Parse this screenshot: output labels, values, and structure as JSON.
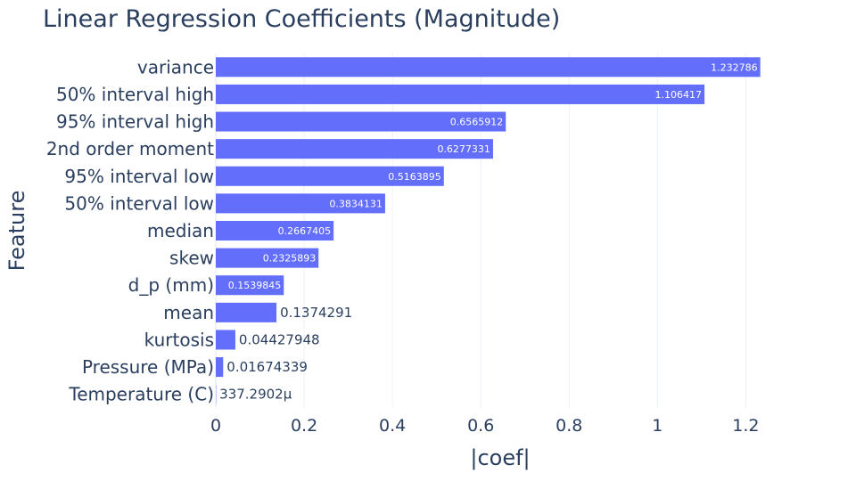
{
  "chart_data": {
    "type": "bar",
    "orientation": "horizontal",
    "title": "Linear Regression Coefficients (Magnitude)",
    "xlabel": "|coef|",
    "ylabel": "Feature",
    "xlim": [
      0,
      1.29
    ],
    "x_ticks": [
      {
        "value": 0,
        "label": "0"
      },
      {
        "value": 0.2,
        "label": "0.2"
      },
      {
        "value": 0.4,
        "label": "0.4"
      },
      {
        "value": 0.6,
        "label": "0.6"
      },
      {
        "value": 0.8,
        "label": "0.8"
      },
      {
        "value": 1,
        "label": "1"
      },
      {
        "value": 1.2,
        "label": "1.2"
      }
    ],
    "bar_color": "#636efa",
    "grid": true,
    "bars": [
      {
        "category": "variance",
        "value": 1.232786,
        "label": "1.232786"
      },
      {
        "category": "50% interval high",
        "value": 1.106417,
        "label": "1.106417"
      },
      {
        "category": "95% interval high",
        "value": 0.6565912,
        "label": "0.6565912"
      },
      {
        "category": "2nd order moment",
        "value": 0.6277331,
        "label": "0.6277331"
      },
      {
        "category": "95% interval low",
        "value": 0.5163895,
        "label": "0.5163895"
      },
      {
        "category": "50% interval low",
        "value": 0.3834131,
        "label": "0.3834131"
      },
      {
        "category": "median",
        "value": 0.2667405,
        "label": "0.2667405"
      },
      {
        "category": "skew",
        "value": 0.2325893,
        "label": "0.2325893"
      },
      {
        "category": "d_p (mm)",
        "value": 0.1539845,
        "label": "0.1539845"
      },
      {
        "category": "mean",
        "value": 0.1374291,
        "label": "0.1374291"
      },
      {
        "category": "kurtosis",
        "value": 0.04427948,
        "label": "0.04427948"
      },
      {
        "category": "Pressure (MPa)",
        "value": 0.01674339,
        "label": "0.01674339"
      },
      {
        "category": "Temperature (C)",
        "value": 0.0003372902,
        "label": "337.2902μ"
      }
    ]
  }
}
